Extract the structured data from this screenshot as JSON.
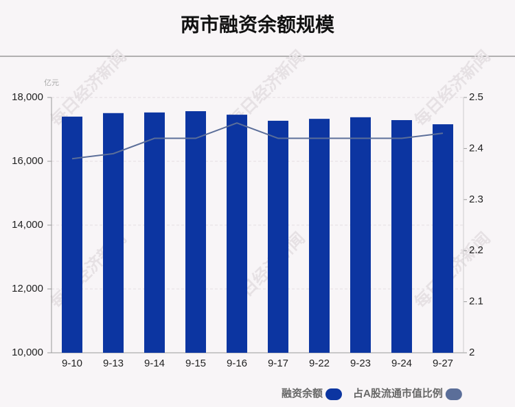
{
  "chart_data": {
    "type": "bar_line",
    "title": "两市融资余额规模",
    "y_unit": "亿元",
    "watermark": "每日经济新闻",
    "categories": [
      "9-10",
      "9-13",
      "9-14",
      "9-15",
      "9-16",
      "9-17",
      "9-22",
      "9-23",
      "9-24",
      "9-27"
    ],
    "series": [
      {
        "name": "融资余额",
        "type": "bar",
        "color": "#0c35a1",
        "values": [
          17400,
          17510,
          17530,
          17570,
          17460,
          17270,
          17330,
          17380,
          17290,
          17160
        ]
      },
      {
        "name": "占A股流通市值比例",
        "type": "line",
        "axis": "y2",
        "color": "#5b6e99",
        "values": [
          2.38,
          2.39,
          2.42,
          2.42,
          2.45,
          2.42,
          2.42,
          2.42,
          2.42,
          2.43
        ]
      }
    ],
    "ylim": [
      10000,
      18000
    ],
    "yticks": [
      {
        "value": 10000,
        "label": "10,000"
      },
      {
        "value": 12000,
        "label": "12,000"
      },
      {
        "value": 14000,
        "label": "14,000"
      },
      {
        "value": 16000,
        "label": "16,000"
      },
      {
        "value": 18000,
        "label": "18,000"
      }
    ],
    "y2lim": [
      2,
      2.5
    ],
    "y2ticks": [
      2,
      2.1,
      2.2,
      2.3,
      2.4,
      2.5
    ],
    "grid": true
  }
}
